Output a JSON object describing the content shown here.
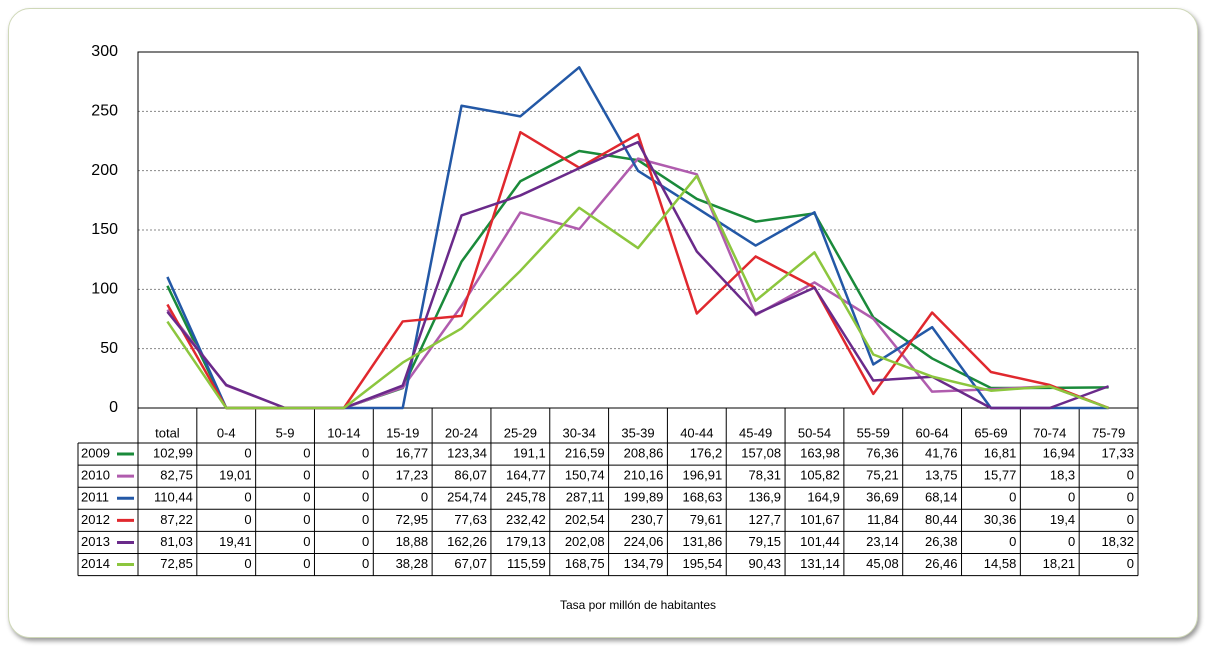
{
  "chart_data": {
    "type": "line",
    "x_label": "Tasa por millón de habitantes",
    "categories": [
      "total",
      "0-4",
      "5-9",
      "10-14",
      "15-19",
      "20-24",
      "25-29",
      "30-34",
      "35-39",
      "40-44",
      "45-49",
      "50-54",
      "55-59",
      "60-64",
      "65-69",
      "70-74",
      "75-79"
    ],
    "ylim": [
      0,
      300
    ],
    "yticks": [
      0,
      50,
      100,
      150,
      200,
      250,
      300
    ],
    "grid": true,
    "series": [
      {
        "name": "2009",
        "color": "#1a8a3a",
        "values": [
          102.99,
          0,
          0,
          0,
          16.77,
          123.34,
          191.1,
          216.59,
          208.86,
          176.2,
          157.08,
          163.98,
          76.36,
          41.76,
          16.81,
          16.94,
          17.33
        ],
        "value_labels": [
          "102,99",
          "0",
          "0",
          "0",
          "16,77",
          "123,34",
          "191,1",
          "216,59",
          "208,86",
          "176,2",
          "157,08",
          "163,98",
          "76,36",
          "41,76",
          "16,81",
          "16,94",
          "17,33"
        ]
      },
      {
        "name": "2010",
        "color": "#b05cae",
        "values": [
          82.75,
          19.01,
          0,
          0,
          17.23,
          86.07,
          164.77,
          150.74,
          210.16,
          196.91,
          78.31,
          105.82,
          75.21,
          13.75,
          15.77,
          18.3,
          0
        ],
        "value_labels": [
          "82,75",
          "19,01",
          "0",
          "0",
          "17,23",
          "86,07",
          "164,77",
          "150,74",
          "210,16",
          "196,91",
          "78,31",
          "105,82",
          "75,21",
          "13,75",
          "15,77",
          "18,3",
          "0"
        ]
      },
      {
        "name": "2011",
        "color": "#2358a6",
        "values": [
          110.44,
          0,
          0,
          0,
          0,
          254.74,
          245.78,
          287.11,
          199.89,
          168.63,
          136.9,
          164.9,
          36.69,
          68.14,
          0,
          0,
          0
        ],
        "value_labels": [
          "110,44",
          "0",
          "0",
          "0",
          "0",
          "254,74",
          "245,78",
          "287,11",
          "199,89",
          "168,63",
          "136,9",
          "164,9",
          "36,69",
          "68,14",
          "0",
          "0",
          "0"
        ]
      },
      {
        "name": "2012",
        "color": "#e0282e",
        "values": [
          87.22,
          0,
          0,
          0,
          72.95,
          77.63,
          232.42,
          202.54,
          230.7,
          79.61,
          127.7,
          101.67,
          11.84,
          80.44,
          30.36,
          19.4,
          0
        ],
        "value_labels": [
          "87,22",
          "0",
          "0",
          "0",
          "72,95",
          "77,63",
          "232,42",
          "202,54",
          "230,7",
          "79,61",
          "127,7",
          "101,67",
          "11,84",
          "80,44",
          "30,36",
          "19,4",
          "0"
        ]
      },
      {
        "name": "2013",
        "color": "#6a2a8a",
        "values": [
          81.03,
          19.41,
          0,
          0,
          18.88,
          162.26,
          179.13,
          202.08,
          224.06,
          131.86,
          79.15,
          101.44,
          23.14,
          26.38,
          0,
          0,
          18.32
        ],
        "value_labels": [
          "81,03",
          "19,41",
          "0",
          "0",
          "18,88",
          "162,26",
          "179,13",
          "202,08",
          "224,06",
          "131,86",
          "79,15",
          "101,44",
          "23,14",
          "26,38",
          "0",
          "0",
          "18,32"
        ]
      },
      {
        "name": "2014",
        "color": "#8cc63e",
        "values": [
          72.85,
          0,
          0,
          0,
          38.28,
          67.07,
          115.59,
          168.75,
          134.79,
          195.54,
          90.43,
          131.14,
          45.08,
          26.46,
          14.58,
          18.21,
          0
        ],
        "value_labels": [
          "72,85",
          "0",
          "0",
          "0",
          "38,28",
          "67,07",
          "115,59",
          "168,75",
          "134,79",
          "195,54",
          "90,43",
          "131,14",
          "45,08",
          "26,46",
          "14,58",
          "18,21",
          "0"
        ]
      }
    ]
  }
}
